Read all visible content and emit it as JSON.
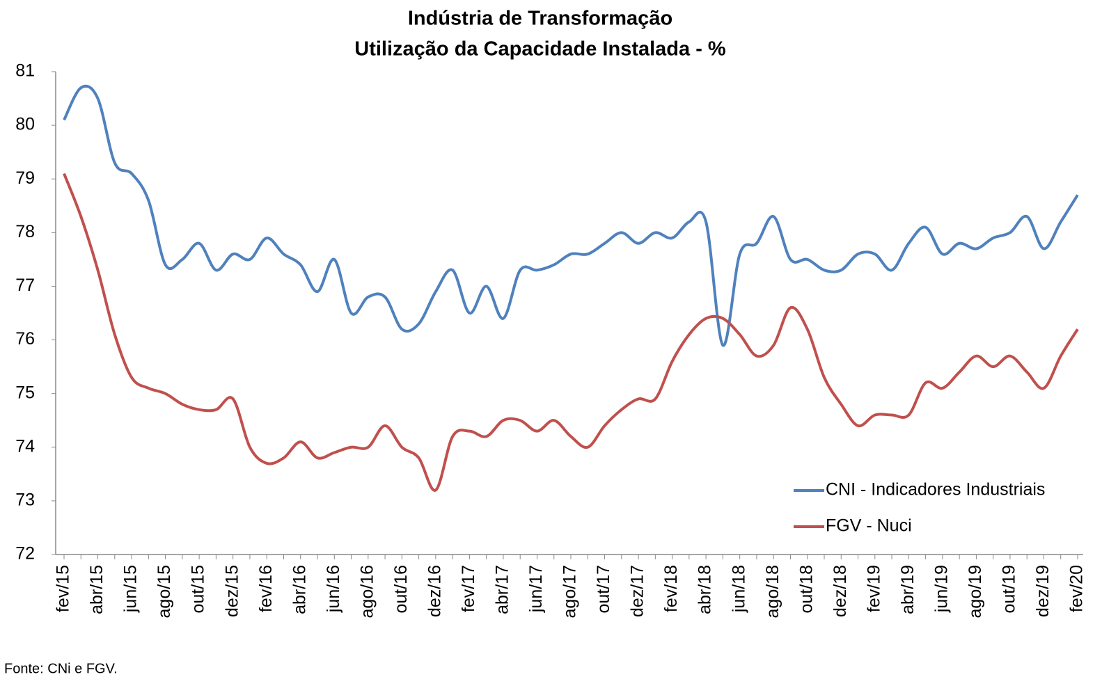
{
  "chart_data": {
    "type": "line",
    "title": "Indústria de Transformação",
    "subtitle": "Utilização da Capacidade Instalada - %",
    "source": "Fonte: CNi e FGV.",
    "categories": [
      "fev/15",
      null,
      "abr/15",
      null,
      "jun/15",
      null,
      "ago/15",
      null,
      "out/15",
      null,
      "dez/15",
      null,
      "fev/16",
      null,
      "abr/16",
      null,
      "jun/16",
      null,
      "ago/16",
      null,
      "out/16",
      null,
      "dez/16",
      null,
      "fev/17",
      null,
      "abr/17",
      null,
      "jun/17",
      null,
      "ago/17",
      null,
      "out/17",
      null,
      "dez/17",
      null,
      "fev/18",
      null,
      "abr/18",
      null,
      "jun/18",
      null,
      "ago/18",
      null,
      "out/18",
      null,
      "dez/18",
      null,
      "fev/19",
      null,
      "abr/19",
      null,
      "jun/19",
      null,
      "ago/19",
      null,
      "out/19",
      null,
      "dez/19",
      null,
      "fev/20"
    ],
    "series": [
      {
        "name": "CNI - Indicadores Industriais",
        "color": "#4f81bd",
        "values": [
          80.1,
          80.7,
          80.5,
          79.3,
          79.1,
          78.6,
          77.4,
          77.5,
          77.8,
          77.3,
          77.6,
          77.5,
          77.9,
          77.6,
          77.4,
          76.9,
          77.5,
          76.5,
          76.8,
          76.8,
          76.2,
          76.3,
          76.9,
          77.3,
          76.5,
          77.0,
          76.4,
          77.3,
          77.3,
          77.4,
          77.6,
          77.6,
          77.8,
          78.0,
          77.8,
          78.0,
          77.9,
          78.2,
          78.2,
          75.9,
          77.6,
          77.8,
          78.3,
          77.5,
          77.5,
          77.3,
          77.3,
          77.6,
          77.6,
          77.3,
          77.8,
          78.1,
          77.6,
          77.8,
          77.7,
          77.9,
          78.0,
          78.3,
          77.7,
          78.2,
          78.7
        ]
      },
      {
        "name": "FGV - Nuci",
        "color": "#c0504d",
        "values": [
          79.1,
          78.3,
          77.3,
          76.1,
          75.3,
          75.1,
          75.0,
          74.8,
          74.7,
          74.7,
          74.9,
          74.0,
          73.7,
          73.8,
          74.1,
          73.8,
          73.9,
          74.0,
          74.0,
          74.4,
          74.0,
          73.8,
          73.2,
          74.2,
          74.3,
          74.2,
          74.5,
          74.5,
          74.3,
          74.5,
          74.2,
          74.0,
          74.4,
          74.7,
          74.9,
          74.9,
          75.6,
          76.1,
          76.4,
          76.4,
          76.1,
          75.7,
          75.9,
          76.6,
          76.2,
          75.3,
          74.8,
          74.4,
          74.6,
          74.6,
          74.6,
          75.2,
          75.1,
          75.4,
          75.7,
          75.5,
          75.7,
          75.4,
          75.1,
          75.7,
          76.2
        ]
      }
    ],
    "ylim": [
      72,
      81
    ],
    "yticks": [
      72,
      73,
      74,
      75,
      76,
      77,
      78,
      79,
      80,
      81
    ],
    "grid": false,
    "legend": "lower right"
  }
}
